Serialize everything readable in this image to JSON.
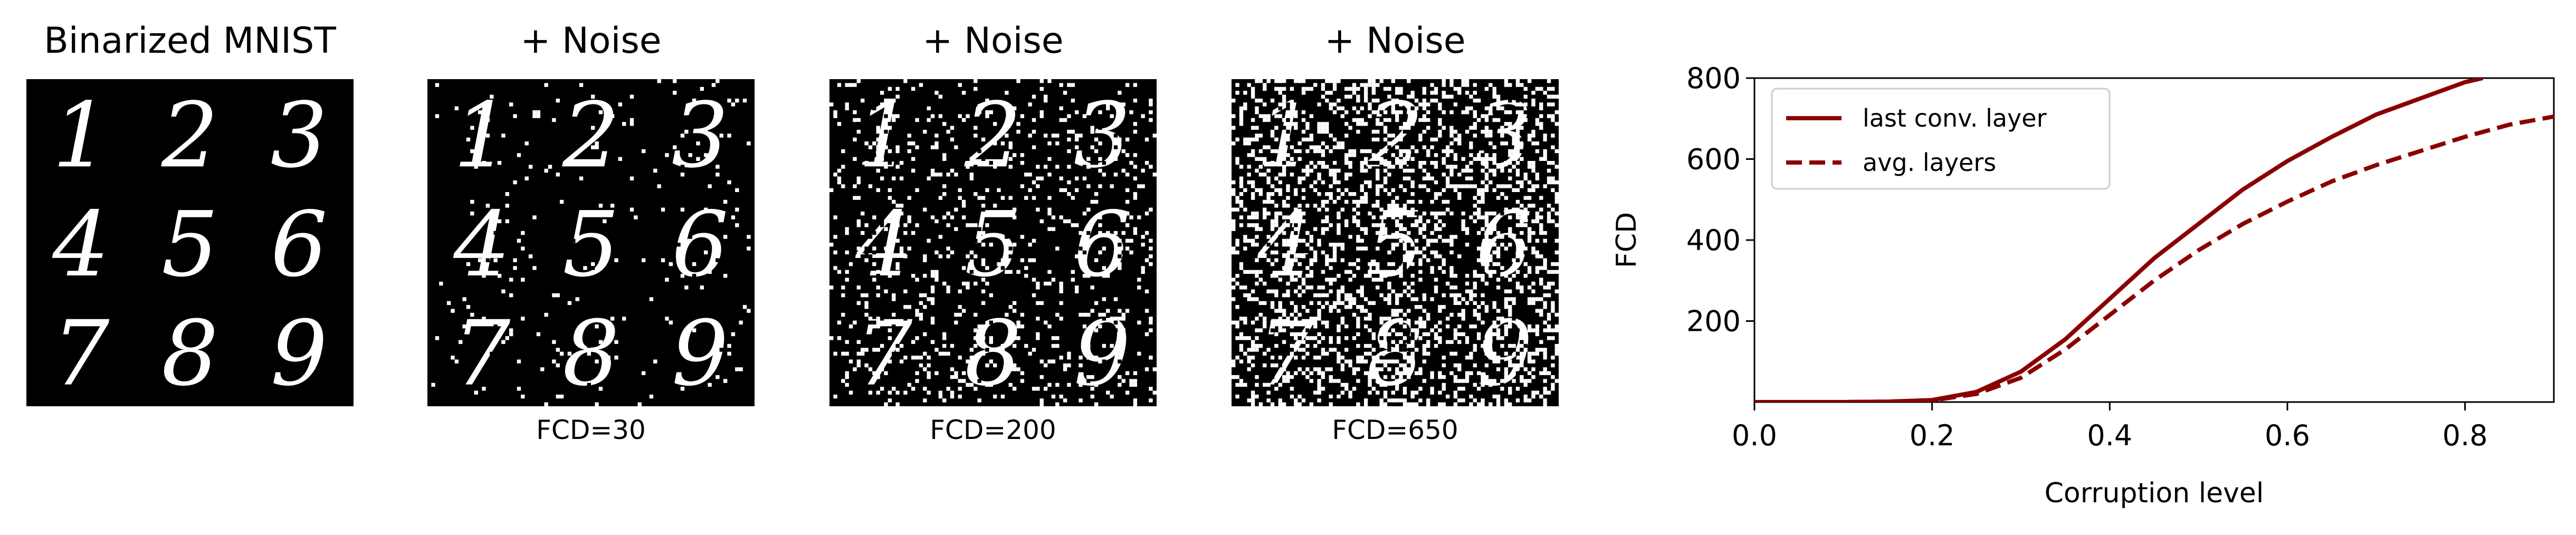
{
  "panels": [
    {
      "title": "Binarized MNIST",
      "caption": "",
      "noise": 0.0
    },
    {
      "title": "+  Noise",
      "caption": "FCD=30",
      "noise": 0.05
    },
    {
      "title": "+  Noise",
      "caption": "FCD=200",
      "noise": 0.2
    },
    {
      "title": "+  Noise",
      "caption": "FCD=650",
      "noise": 0.5
    }
  ],
  "digits": [
    "1",
    "2",
    "3",
    "4",
    "5",
    "6",
    "7",
    "8",
    "9"
  ],
  "chart_data": {
    "type": "line",
    "title": "",
    "xlabel": "Corruption level",
    "ylabel": "FCD",
    "xlim": [
      0.0,
      0.9
    ],
    "ylim": [
      0,
      800
    ],
    "xticks": [
      "0.0",
      "0.2",
      "0.4",
      "0.6",
      "0.8"
    ],
    "yticks": [
      "200",
      "400",
      "600",
      "800"
    ],
    "legend_position": "top-left",
    "grid": false,
    "series": [
      {
        "name": "last conv. layer",
        "style": "solid",
        "color": "#8b0000",
        "x": [
          0.0,
          0.1,
          0.15,
          0.2,
          0.25,
          0.3,
          0.35,
          0.4,
          0.45,
          0.5,
          0.55,
          0.6,
          0.65,
          0.7,
          0.75,
          0.8,
          0.82
        ],
        "y": [
          0,
          0,
          1,
          5,
          25,
          75,
          155,
          255,
          355,
          440,
          525,
          595,
          655,
          710,
          750,
          790,
          800
        ]
      },
      {
        "name": "avg. layers",
        "style": "dashed",
        "color": "#8b0000",
        "x": [
          0.0,
          0.1,
          0.15,
          0.2,
          0.25,
          0.3,
          0.35,
          0.4,
          0.45,
          0.5,
          0.55,
          0.6,
          0.65,
          0.7,
          0.75,
          0.8,
          0.85,
          0.9
        ],
        "y": [
          0,
          0,
          1,
          4,
          20,
          60,
          130,
          215,
          300,
          375,
          440,
          495,
          545,
          585,
          620,
          655,
          685,
          705
        ]
      }
    ]
  }
}
